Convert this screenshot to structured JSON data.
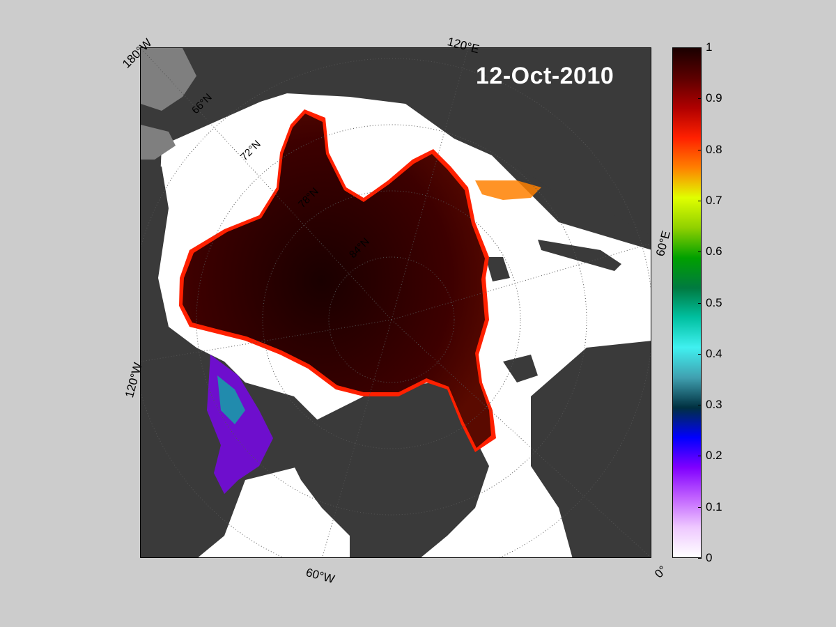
{
  "map": {
    "date": "12-Oct-2010",
    "longitude_labels": [
      "180°W",
      "120°E",
      "60°E",
      "0°",
      "60°W",
      "120°W"
    ],
    "latitude_labels": [
      "66°N",
      "72°N",
      "78°N",
      "84°N"
    ],
    "colors": {
      "background": "#cccccc",
      "land": "#3a3a3a",
      "land_edge": "#7f7f7f",
      "open_water": "#ffffff",
      "graticule": "#555555"
    }
  },
  "colorbar": {
    "ticks": [
      "1",
      "0.9",
      "0.8",
      "0.7",
      "0.6",
      "0.5",
      "0.4",
      "0.3",
      "0.2",
      "0.1",
      "0"
    ],
    "range": [
      0,
      1
    ],
    "colors_top_to_bottom": [
      "#1a0000",
      "#5c0000",
      "#b00000",
      "#ff2000",
      "#ff8000",
      "#e0ff00",
      "#90d000",
      "#00a000",
      "#007a40",
      "#00c0a0",
      "#40f0f0",
      "#40a0b0",
      "#003040",
      "#0000ff",
      "#8000ff",
      "#c060ff",
      "#eec8ff",
      "#ffffff"
    ]
  }
}
